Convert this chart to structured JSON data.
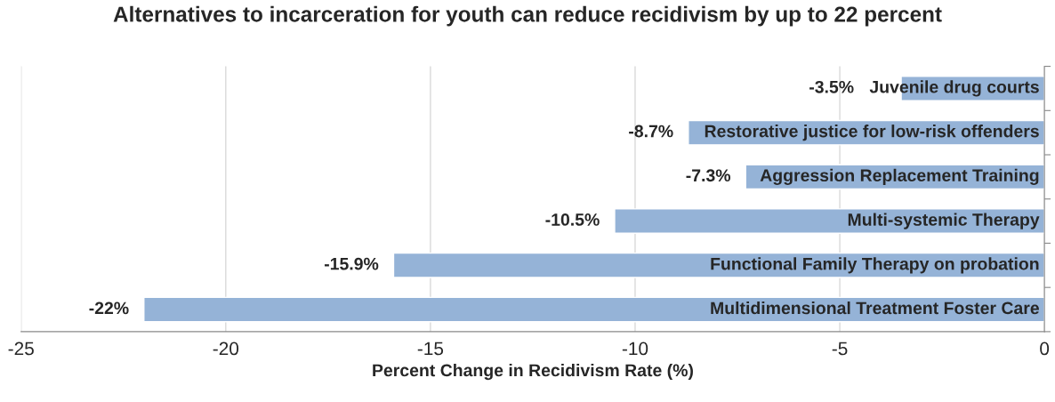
{
  "chart_data": {
    "type": "bar",
    "orientation": "horizontal",
    "title": "Alternatives to incarceration for youth can reduce recidivism by up to 22 percent",
    "xlabel": "Percent Change in Recidivism Rate (%)",
    "categories": [
      "Juvenile drug courts",
      "Restorative justice for low-risk offenders",
      "Aggression Replacement Training",
      "Multi-systemic Therapy",
      "Functional Family Therapy on probation",
      "Multidimensional Treatment Foster Care"
    ],
    "values": [
      -3.5,
      -8.7,
      -7.3,
      -10.5,
      -15.9,
      -22
    ],
    "value_labels": [
      "-3.5%",
      "-8.7%",
      "-7.3%",
      "-10.5%",
      "-15.9%",
      "-22%"
    ],
    "color": "#95b3d7",
    "xlim": [
      -25,
      0
    ],
    "xticks": [
      -25,
      -20,
      -15,
      -10,
      -5,
      0
    ],
    "grid": "x"
  }
}
